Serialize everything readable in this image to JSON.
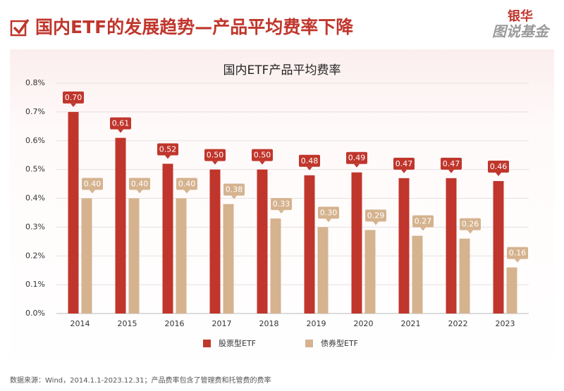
{
  "header": {
    "title": "国内ETF的发展趋势—产品平均费率下降",
    "logo_brand": "银华",
    "logo_text": "图说基金"
  },
  "chart_data": {
    "type": "bar",
    "title": "国内ETF产品平均费率",
    "categories": [
      "2014",
      "2015",
      "2016",
      "2017",
      "2018",
      "2019",
      "2020",
      "2021",
      "2022",
      "2023"
    ],
    "series": [
      {
        "name": "股票型ETF",
        "color": "#c0362c",
        "values": [
          0.7,
          0.61,
          0.52,
          0.5,
          0.5,
          0.48,
          0.49,
          0.47,
          0.47,
          0.46
        ],
        "value_labels": [
          "0.70",
          "0.61",
          "0.52",
          "0.50",
          "0.50",
          "0.48",
          "0.49",
          "0.47",
          "0.47",
          "0.46"
        ]
      },
      {
        "name": "债券型ETF",
        "color": "#d5b38f",
        "values": [
          0.4,
          0.4,
          0.4,
          0.38,
          0.33,
          0.3,
          0.29,
          0.27,
          0.26,
          0.16
        ],
        "value_labels": [
          "0.40",
          "0.40",
          "0.40",
          "0.38",
          "0.33",
          "0.30",
          "0.29",
          "0.27",
          "0.26",
          "0.16"
        ]
      }
    ],
    "ylim": [
      0,
      0.8
    ],
    "yticks": [
      {
        "value": 0,
        "label": "0.0%"
      },
      {
        "value": 0.1,
        "label": "0.1%"
      },
      {
        "value": 0.2,
        "label": "0.2%"
      },
      {
        "value": 0.3,
        "label": "0.3%"
      },
      {
        "value": 0.4,
        "label": "0.4%"
      },
      {
        "value": 0.5,
        "label": "0.5%"
      },
      {
        "value": 0.6,
        "label": "0.6%"
      },
      {
        "value": 0.7,
        "label": "0.7%"
      },
      {
        "value": 0.8,
        "label": "0.8%"
      }
    ],
    "grid": true,
    "legend": "bottom",
    "source": "数据来源：Wind，2014.1.1-2023.12.31；产品费率包含了管理费和托管费的费率"
  }
}
